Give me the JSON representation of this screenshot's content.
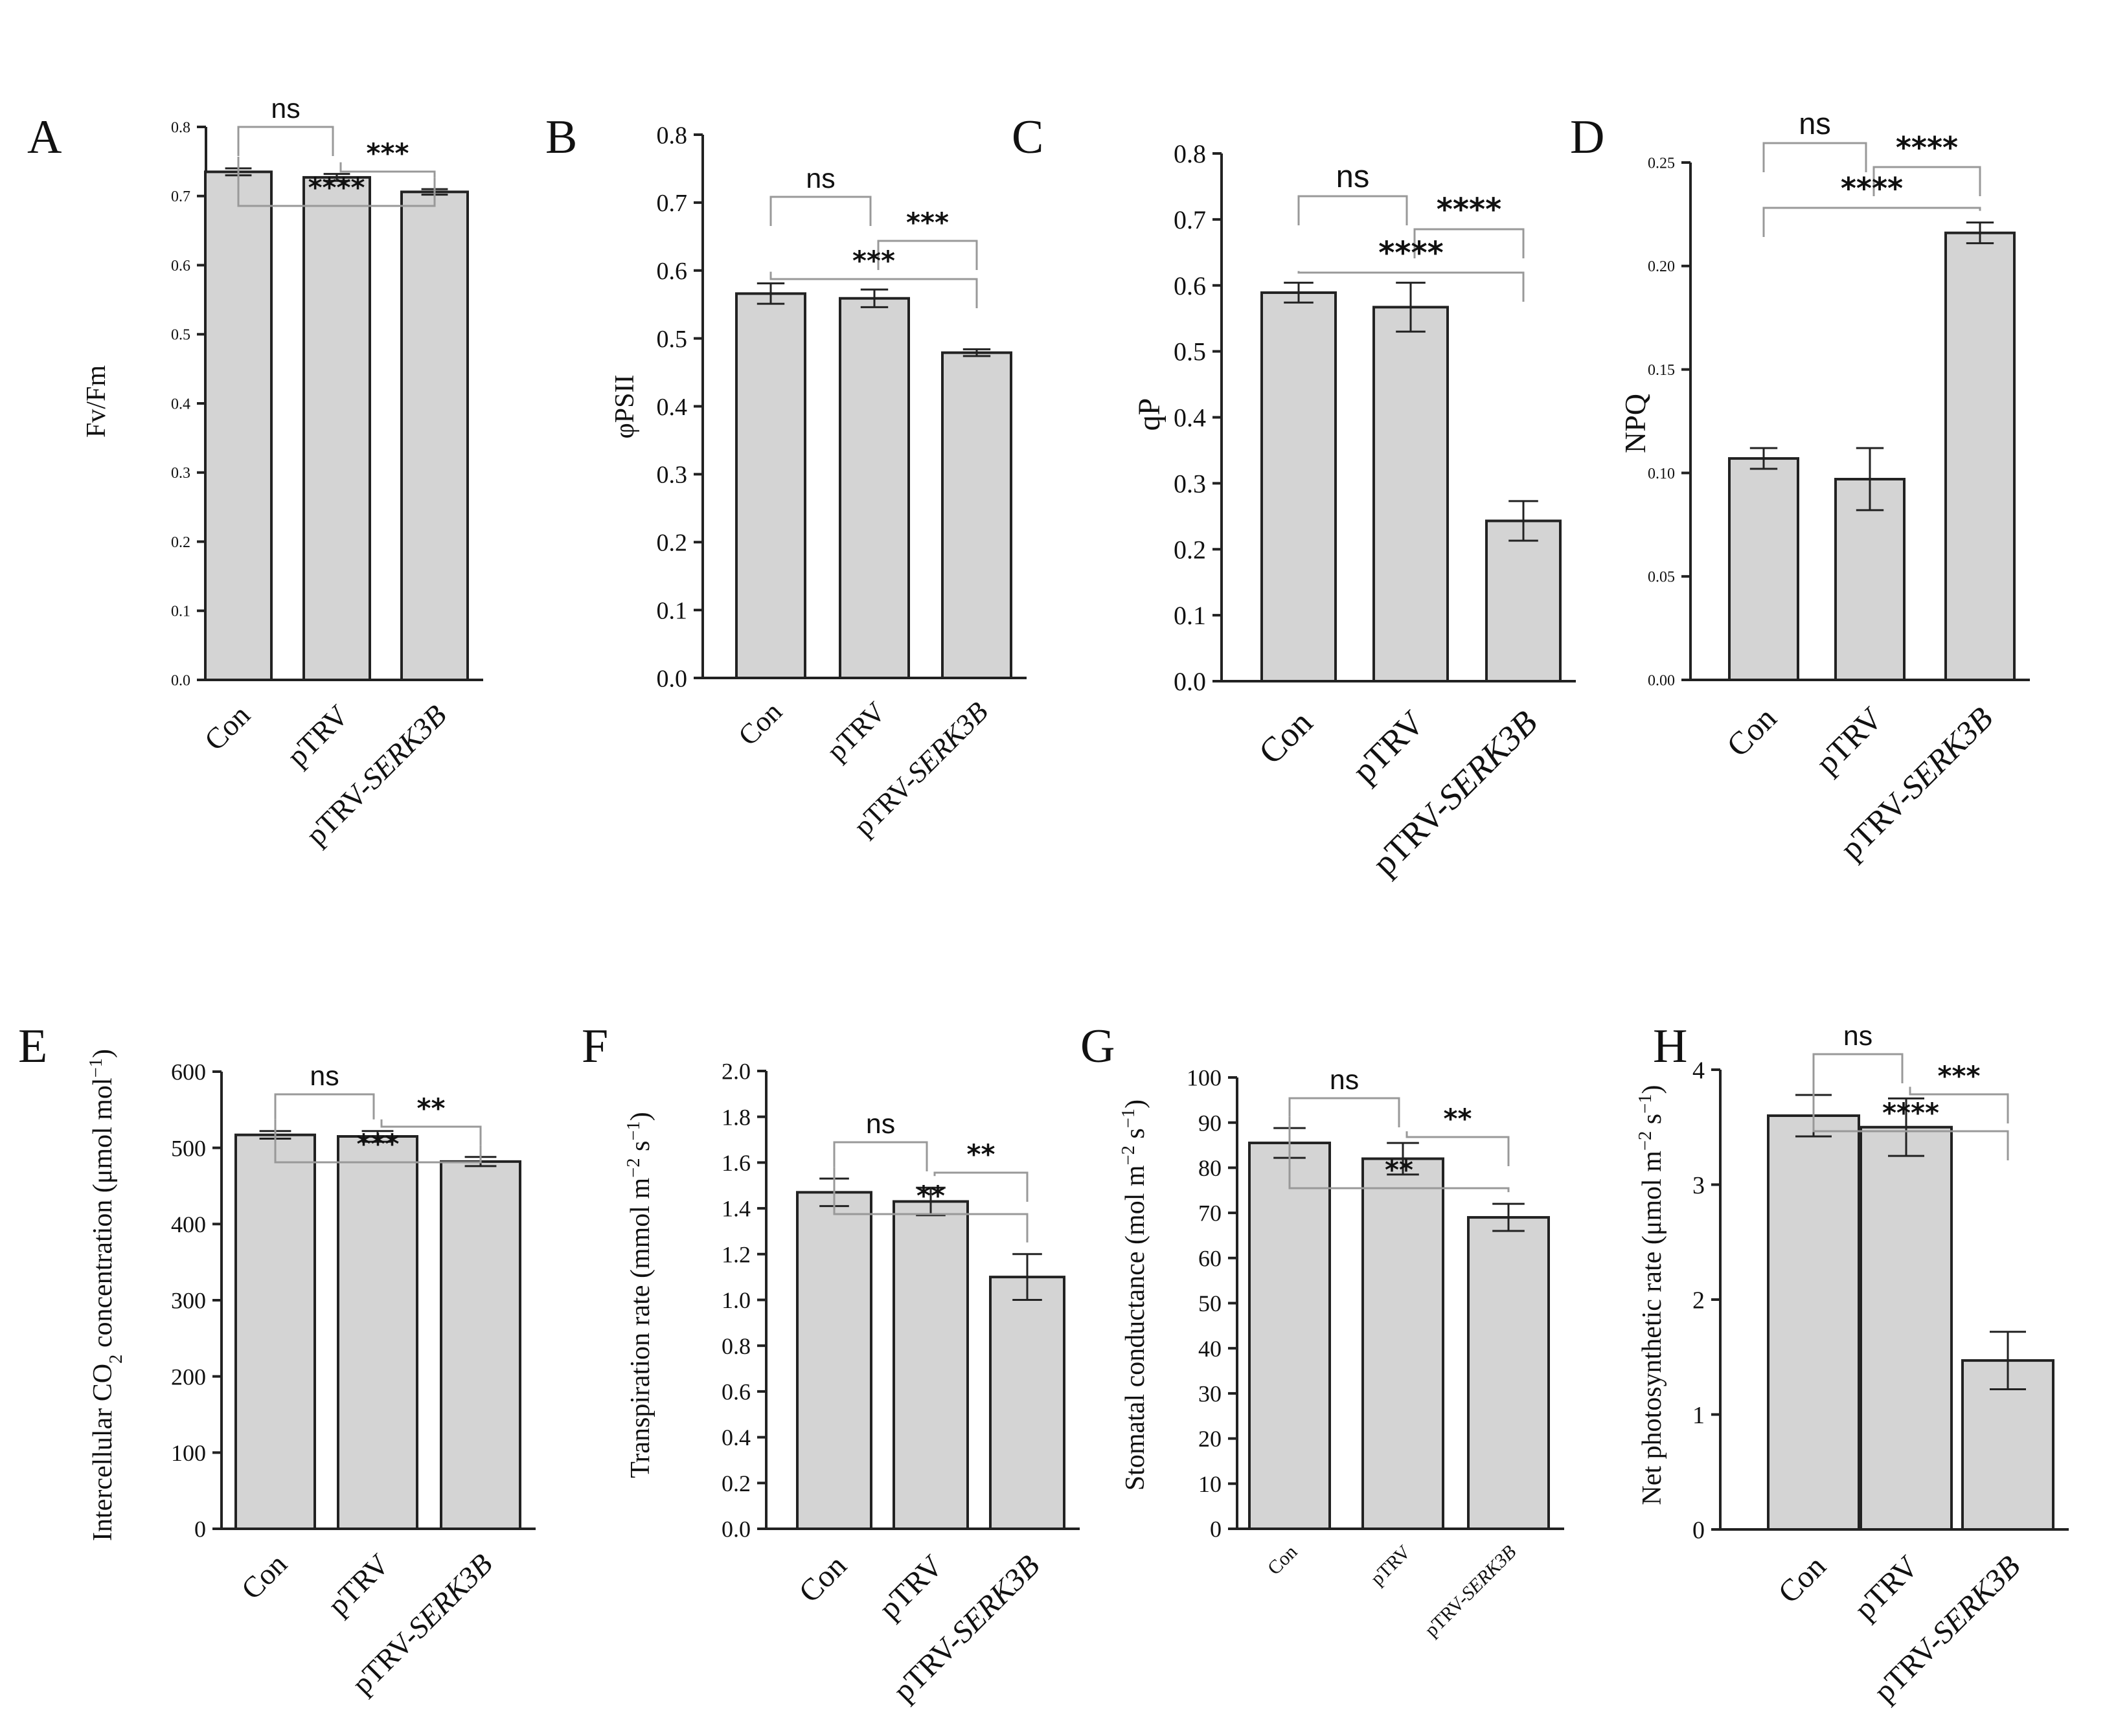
{
  "colors": {
    "bar_fill": "#d4d4d4",
    "axis": "#222222",
    "bracket": "#999999"
  },
  "chart_data": [
    {
      "type": "bar",
      "panel": "A",
      "ylabel": "Fv/Fm",
      "ylabel_parts": [],
      "categories": [
        "Con",
        "pTRV",
        "pTRV-"
      ],
      "category_italic": [
        "",
        "",
        "SERK3B"
      ],
      "values": [
        0.735,
        0.727,
        0.706
      ],
      "errors": [
        0.005,
        0.005,
        0.004
      ],
      "ylim": [
        0,
        0.8
      ],
      "ticks": [
        0,
        0.1,
        0.2,
        0.3,
        0.4,
        0.5,
        0.6,
        0.7,
        0.8
      ],
      "tick_labels": [
        "0.0",
        "0.1",
        "0.2",
        "0.3",
        "0.4",
        "0.5",
        "0.6",
        "0.7",
        "0.8"
      ],
      "comparisons": [
        {
          "pair": [
            0,
            1
          ],
          "label": "ns"
        },
        {
          "pair": [
            1,
            2
          ],
          "label": "***"
        },
        {
          "pair": [
            0,
            2
          ],
          "label": "****"
        }
      ]
    },
    {
      "type": "bar",
      "panel": "B",
      "ylabel": "φPSII",
      "ylabel_parts": [],
      "categories": [
        "Con",
        "pTRV",
        "pTRV-"
      ],
      "category_italic": [
        "",
        "",
        "SERK3B"
      ],
      "values": [
        0.566,
        0.559,
        0.479
      ],
      "errors": [
        0.015,
        0.013,
        0.005
      ],
      "ylim": [
        0,
        0.8
      ],
      "ticks": [
        0,
        0.1,
        0.2,
        0.3,
        0.4,
        0.5,
        0.6,
        0.7,
        0.8
      ],
      "tick_labels": [
        "0.0",
        "0.1",
        "0.2",
        "0.3",
        "0.4",
        "0.5",
        "0.6",
        "0.7",
        "0.8"
      ],
      "comparisons": [
        {
          "pair": [
            0,
            1
          ],
          "label": "ns"
        },
        {
          "pair": [
            1,
            2
          ],
          "label": "***"
        },
        {
          "pair": [
            0,
            2
          ],
          "label": "***"
        }
      ]
    },
    {
      "type": "bar",
      "panel": "C",
      "ylabel": "qP",
      "ylabel_parts": [],
      "categories": [
        "Con",
        "pTRV",
        "pTRV-"
      ],
      "category_italic": [
        "",
        "",
        "SERK3B"
      ],
      "values": [
        0.589,
        0.567,
        0.243
      ],
      "errors": [
        0.015,
        0.037,
        0.03
      ],
      "ylim": [
        0,
        0.8
      ],
      "ticks": [
        0,
        0.1,
        0.2,
        0.3,
        0.4,
        0.5,
        0.6,
        0.7,
        0.8
      ],
      "tick_labels": [
        "0.0",
        "0.1",
        "0.2",
        "0.3",
        "0.4",
        "0.5",
        "0.6",
        "0.7",
        "0.8"
      ],
      "comparisons": [
        {
          "pair": [
            0,
            1
          ],
          "label": "ns"
        },
        {
          "pair": [
            1,
            2
          ],
          "label": "****"
        },
        {
          "pair": [
            0,
            2
          ],
          "label": "****"
        }
      ]
    },
    {
      "type": "bar",
      "panel": "D",
      "ylabel": "NPQ",
      "ylabel_parts": [],
      "categories": [
        "Con",
        "pTRV",
        "pTRV-"
      ],
      "category_italic": [
        "",
        "",
        "SERK3B"
      ],
      "values": [
        0.107,
        0.097,
        0.216
      ],
      "errors": [
        0.005,
        0.015,
        0.005
      ],
      "ylim": [
        0,
        0.25
      ],
      "ticks": [
        0,
        0.05,
        0.1,
        0.15,
        0.2,
        0.25
      ],
      "tick_labels": [
        "0.00",
        "0.05",
        "0.10",
        "0.15",
        "0.20",
        "0.25"
      ],
      "comparisons": [
        {
          "pair": [
            0,
            1
          ],
          "label": "ns"
        },
        {
          "pair": [
            1,
            2
          ],
          "label": "****"
        },
        {
          "pair": [
            0,
            2
          ],
          "label": "****"
        }
      ]
    },
    {
      "type": "bar",
      "panel": "E",
      "ylabel": "",
      "ylabel_parts": [
        {
          "t": "Intercellular CO",
          "s": "n"
        },
        {
          "t": "2",
          "s": "sub"
        },
        {
          "t": " concentration (μmol mol",
          "s": "n"
        },
        {
          "t": "−1",
          "s": "sup"
        },
        {
          "t": ")",
          "s": "n"
        }
      ],
      "categories": [
        "Con",
        "pTRV",
        "pTRV-"
      ],
      "category_italic": [
        "",
        "",
        "SERK3B"
      ],
      "values": [
        517,
        515,
        482
      ],
      "errors": [
        5,
        7,
        6
      ],
      "ylim": [
        0,
        600
      ],
      "ticks": [
        0,
        100,
        200,
        300,
        400,
        500,
        600
      ],
      "tick_labels": [
        "0",
        "100",
        "200",
        "300",
        "400",
        "500",
        "600"
      ],
      "comparisons": [
        {
          "pair": [
            0,
            1
          ],
          "label": "ns"
        },
        {
          "pair": [
            1,
            2
          ],
          "label": "**"
        },
        {
          "pair": [
            0,
            2
          ],
          "label": "***"
        }
      ]
    },
    {
      "type": "bar",
      "panel": "F",
      "ylabel": "",
      "ylabel_parts": [
        {
          "t": "Transpiration rate (mmol m",
          "s": "n"
        },
        {
          "t": "−2",
          "s": "sup"
        },
        {
          "t": " s",
          "s": "n"
        },
        {
          "t": "−1",
          "s": "sup"
        },
        {
          "t": ")",
          "s": "n"
        }
      ],
      "categories": [
        "Con",
        "pTRV",
        "pTRV-"
      ],
      "category_italic": [
        "",
        "",
        "SERK3B"
      ],
      "values": [
        1.47,
        1.43,
        1.1
      ],
      "errors": [
        0.06,
        0.06,
        0.1
      ],
      "ylim": [
        0,
        2.0
      ],
      "ticks": [
        0,
        0.2,
        0.4,
        0.6,
        0.8,
        1.0,
        1.2,
        1.4,
        1.6,
        1.8,
        2.0
      ],
      "tick_labels": [
        "0.0",
        "0.2",
        "0.4",
        "0.6",
        "0.8",
        "1.0",
        "1.2",
        "1.4",
        "1.6",
        "1.8",
        "2.0"
      ],
      "comparisons": [
        {
          "pair": [
            0,
            1
          ],
          "label": "ns"
        },
        {
          "pair": [
            1,
            2
          ],
          "label": "**"
        },
        {
          "pair": [
            0,
            2
          ],
          "label": "**"
        }
      ]
    },
    {
      "type": "bar",
      "panel": "G",
      "ylabel": "",
      "ylabel_parts": [
        {
          "t": "Stomatal conductance (mol m",
          "s": "n"
        },
        {
          "t": "−2",
          "s": "sup"
        },
        {
          "t": " s",
          "s": "n"
        },
        {
          "t": "−1",
          "s": "sup"
        },
        {
          "t": ")",
          "s": "n"
        }
      ],
      "categories": [
        "Con",
        "pTRV",
        "pTRV-"
      ],
      "category_italic": [
        "",
        "",
        "SERK3B"
      ],
      "values": [
        85.5,
        82,
        69
      ],
      "errors": [
        3.3,
        3.5,
        3
      ],
      "ylim": [
        0,
        100
      ],
      "ticks": [
        0,
        10,
        20,
        30,
        40,
        50,
        60,
        70,
        80,
        90,
        100
      ],
      "tick_labels": [
        "0",
        "10",
        "20",
        "30",
        "40",
        "50",
        "60",
        "70",
        "80",
        "90",
        "100"
      ],
      "comparisons": [
        {
          "pair": [
            0,
            1
          ],
          "label": "ns"
        },
        {
          "pair": [
            1,
            2
          ],
          "label": "**"
        },
        {
          "pair": [
            0,
            2
          ],
          "label": "**"
        }
      ]
    },
    {
      "type": "bar",
      "panel": "H",
      "ylabel": "",
      "ylabel_parts": [
        {
          "t": "Net photosynthetic rate (μmol m",
          "s": "n"
        },
        {
          "t": "−2",
          "s": "sup"
        },
        {
          "t": " s",
          "s": "n"
        },
        {
          "t": "−1",
          "s": "sup"
        },
        {
          "t": ")",
          "s": "n"
        }
      ],
      "categories": [
        "Con",
        "pTRV",
        "pTRV-"
      ],
      "category_italic": [
        "",
        "",
        "SERK3B"
      ],
      "values": [
        3.6,
        3.5,
        1.47
      ],
      "errors": [
        0.18,
        0.25,
        0.25
      ],
      "ylim": [
        0,
        4
      ],
      "ticks": [
        0,
        1,
        2,
        3,
        4
      ],
      "tick_labels": [
        "0",
        "1",
        "2",
        "3",
        "4"
      ],
      "comparisons": [
        {
          "pair": [
            0,
            1
          ],
          "label": "ns"
        },
        {
          "pair": [
            1,
            2
          ],
          "label": "***"
        },
        {
          "pair": [
            0,
            2
          ],
          "label": "****"
        }
      ]
    }
  ]
}
